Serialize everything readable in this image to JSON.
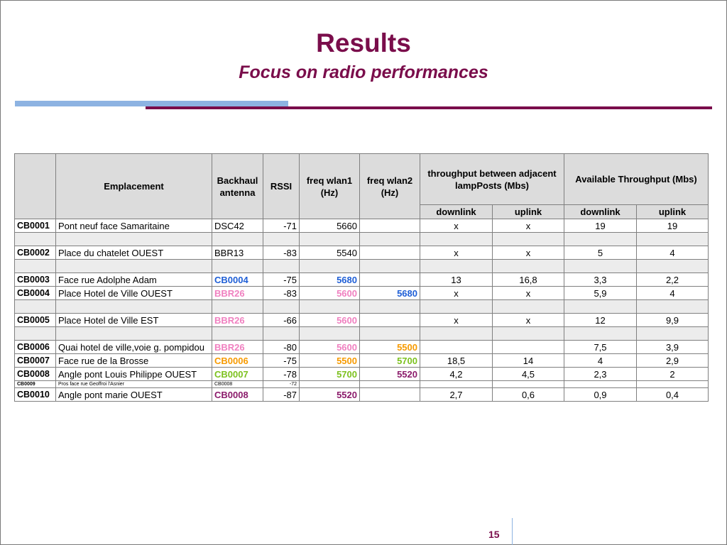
{
  "slide": {
    "title": "Results",
    "subtitle": "Focus on radio performances",
    "page_number": "15"
  },
  "colors": {
    "title": "#7a0d4b",
    "accent_bar_blue": "#8db3e2",
    "accent_bar_maroon": "#7a0d4b",
    "CB0004": "#1f5fd6",
    "BBR26": "#f080c0",
    "CB0006": "#f79a00",
    "CB0007": "#7cc11e",
    "CB0008": "#8b1b6b"
  },
  "table": {
    "headers": {
      "emplacement": "Emplacement",
      "backhaul": "Backhaul antenna",
      "rssi": "RSSI",
      "wlan1": "freq wlan1 (Hz)",
      "wlan2": "freq wlan2 (Hz)",
      "adjacent": "throughput between adjacent lampPosts (Mbs)",
      "available": "Available Throughput (Mbs)",
      "downlink": "downlink",
      "uplink": "uplink"
    },
    "rows": [
      {
        "id": "CB0001",
        "place": "Pont neuf face Samaritaine",
        "backhaul": "DSC42",
        "rssi": "-71",
        "wlan1": "5660",
        "wlan2": "",
        "adj_down": "x",
        "adj_up": "x",
        "avail_down": "19",
        "avail_up": "19"
      },
      {
        "id": "CB0002",
        "place": "Place du chatelet OUEST",
        "backhaul": "BBR13",
        "rssi": "-83",
        "wlan1": "5540",
        "wlan2": "",
        "adj_down": "x",
        "adj_up": "x",
        "avail_down": "5",
        "avail_up": "4"
      },
      {
        "id": "CB0003",
        "place": "Face rue Adolphe Adam",
        "backhaul": "CB0004",
        "rssi": "-75",
        "wlan1": "5680",
        "wlan2": "",
        "adj_down": "13",
        "adj_up": "16,8",
        "avail_down": "3,3",
        "avail_up": "2,2"
      },
      {
        "id": "CB0004",
        "place": "Place Hotel de Ville OUEST",
        "backhaul": "BBR26",
        "rssi": "-83",
        "wlan1": "5600",
        "wlan2": "5680",
        "adj_down": "x",
        "adj_up": "x",
        "avail_down": "5,9",
        "avail_up": "4"
      },
      {
        "id": "CB0005",
        "place": "Place Hotel de Ville EST",
        "backhaul": "BBR26",
        "rssi": "-66",
        "wlan1": "5600",
        "wlan2": "",
        "adj_down": "x",
        "adj_up": "x",
        "avail_down": "12",
        "avail_up": "9,9"
      },
      {
        "id": "CB0006",
        "place": "Quai hotel de ville,voie g. pompidou",
        "backhaul": "BBR26",
        "rssi": "-80",
        "wlan1": "5600",
        "wlan2": "5500",
        "adj_down": "",
        "adj_up": "",
        "avail_down": "7,5",
        "avail_up": "3,9"
      },
      {
        "id": "CB0007",
        "place": "Face rue de la Brosse",
        "backhaul": "CB0006",
        "rssi": "-75",
        "wlan1": "5500",
        "wlan2": "5700",
        "adj_down": "18,5",
        "adj_up": "14",
        "avail_down": "4",
        "avail_up": "2,9"
      },
      {
        "id": "CB0008",
        "place": "Angle pont Louis Philippe OUEST",
        "backhaul": "CB0007",
        "rssi": "-78",
        "wlan1": "5700",
        "wlan2": "5520",
        "adj_down": "4,2",
        "adj_up": "4,5",
        "avail_down": "2,3",
        "avail_up": "2"
      },
      {
        "id": "CB0009",
        "place": "Pros face rue Geoffroi l'Asnier",
        "backhaul": "CB0008",
        "rssi": "-72",
        "wlan1": "",
        "wlan2": "",
        "adj_down": "",
        "adj_up": "",
        "avail_down": "",
        "avail_up": ""
      },
      {
        "id": "CB0010",
        "place": "Angle pont marie OUEST",
        "backhaul": "CB0008",
        "rssi": "-87",
        "wlan1": "5520",
        "wlan2": "",
        "adj_down": "2,7",
        "adj_up": "0,6",
        "avail_down": "0,9",
        "avail_up": "0,4"
      }
    ]
  }
}
